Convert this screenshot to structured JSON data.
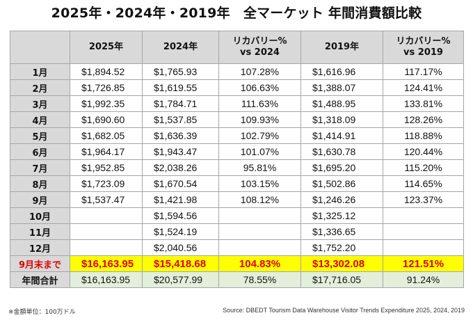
{
  "title": "2025年・2024年・2019年　全マーケット 年間消費額比較",
  "table": {
    "headers": [
      "",
      "2025年",
      "2024年",
      "リカバリー%\nvs 2024",
      "2019年",
      "リカバリー%\nvs 2019"
    ],
    "rows": [
      {
        "label": "1月",
        "y2025": "$1,894.52",
        "y2024": "$1,765.93",
        "rec2024": "107.28%",
        "y2019": "$1,616.96",
        "rec2019": "117.17%"
      },
      {
        "label": "2月",
        "y2025": "$1,726.85",
        "y2024": "$1,619.55",
        "rec2024": "106.63%",
        "y2019": "$1,388.07",
        "rec2019": "124.41%"
      },
      {
        "label": "3月",
        "y2025": "$1,992.35",
        "y2024": "$1,784.71",
        "rec2024": "111.63%",
        "y2019": "$1,488.95",
        "rec2019": "133.81%"
      },
      {
        "label": "4月",
        "y2025": "$1,690.60",
        "y2024": "$1,537.85",
        "rec2024": "109.93%",
        "y2019": "$1,318.09",
        "rec2019": "128.26%"
      },
      {
        "label": "5月",
        "y2025": "$1,682.05",
        "y2024": "$1,636.39",
        "rec2024": "102.79%",
        "y2019": "$1,414.91",
        "rec2019": "118.88%"
      },
      {
        "label": "6月",
        "y2025": "$1,964.17",
        "y2024": "$1,943.47",
        "rec2024": "101.07%",
        "y2019": "$1,630.78",
        "rec2019": "120.44%"
      },
      {
        "label": "7月",
        "y2025": "$1,952.85",
        "y2024": "$2,038.26",
        "rec2024": "95.81%",
        "y2019": "$1,695.20",
        "rec2019": "115.20%"
      },
      {
        "label": "8月",
        "y2025": "$1,723.09",
        "y2024": "$1,670.54",
        "rec2024": "103.15%",
        "y2019": "$1,502.86",
        "rec2019": "114.65%"
      },
      {
        "label": "9月",
        "y2025": "$1,537.47",
        "y2024": "$1,421.98",
        "rec2024": "108.12%",
        "y2019": "$1,246.26",
        "rec2019": "123.37%"
      },
      {
        "label": "10月",
        "y2025": "",
        "y2024": "$1,594.56",
        "rec2024": "",
        "y2019": "$1,325.12",
        "rec2019": ""
      },
      {
        "label": "11月",
        "y2025": "",
        "y2024": "$1,524.19",
        "rec2024": "",
        "y2019": "$1,336.65",
        "rec2019": ""
      },
      {
        "label": "12月",
        "y2025": "",
        "y2024": "$2,040.56",
        "rec2024": "",
        "y2019": "$1,752.20",
        "rec2019": ""
      }
    ],
    "ytd": {
      "label": "9月末まで",
      "y2025": "$16,163.95",
      "y2024": "$15,418.68",
      "rec2024": "104.83%",
      "y2019": "$13,302.08",
      "rec2019": "121.51%"
    },
    "annual": {
      "label": "年間合計",
      "y2025": "$16,163.95",
      "y2024": "$20,577.99",
      "rec2024": "78.55%",
      "y2019": "$17,716.05",
      "rec2019": "91.24%"
    }
  },
  "footnote": "※金額単位：100万ドル",
  "source": "Source: DBEDT Tourism Data Warehouse Visitor Trends Expenditure 2025, 2024, 2019",
  "colors": {
    "header_bg": "#d9d9d9",
    "highlight_bg": "#ffff00",
    "highlight_text": "#e00000",
    "annual_bg": "#e2efda"
  }
}
